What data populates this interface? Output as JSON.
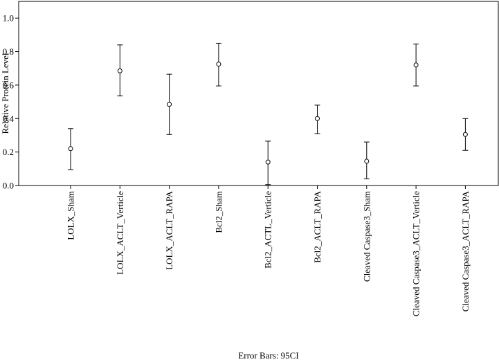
{
  "chart_data": {
    "type": "scatter",
    "error_bars": true,
    "ylabel": "Relative Protein Level",
    "footnote": "Error Bars: 95CI",
    "ylim": [
      0,
      1.1
    ],
    "yticks": [
      0.0,
      0.2,
      0.4,
      0.6,
      0.8,
      1.0
    ],
    "ytick_labels": [
      "0.0",
      "0.2",
      "0.4",
      "0.6",
      "0.8",
      "1.0"
    ],
    "grid": false,
    "categories": [
      "LOLX_Sham",
      "LOLX_ACLT_Verticle",
      "LOLX_ACLT_RAPA",
      "Bcl2_Sham",
      "Bcl2_ACTL_Verticle",
      "Bcl2_ACLT_RAPA",
      "Cleaved Caspase3_Sham",
      "Cleaved Caspase3_ACLT_Verticle",
      "Cleaved Caspase3_ACLT_RAPA"
    ],
    "values": [
      0.22,
      0.685,
      0.485,
      0.725,
      0.14,
      0.4,
      0.145,
      0.72,
      0.305
    ],
    "lower": [
      0.095,
      0.535,
      0.305,
      0.595,
      0.005,
      0.31,
      0.04,
      0.595,
      0.21
    ],
    "upper": [
      0.34,
      0.84,
      0.665,
      0.85,
      0.265,
      0.48,
      0.26,
      0.845,
      0.4
    ]
  }
}
